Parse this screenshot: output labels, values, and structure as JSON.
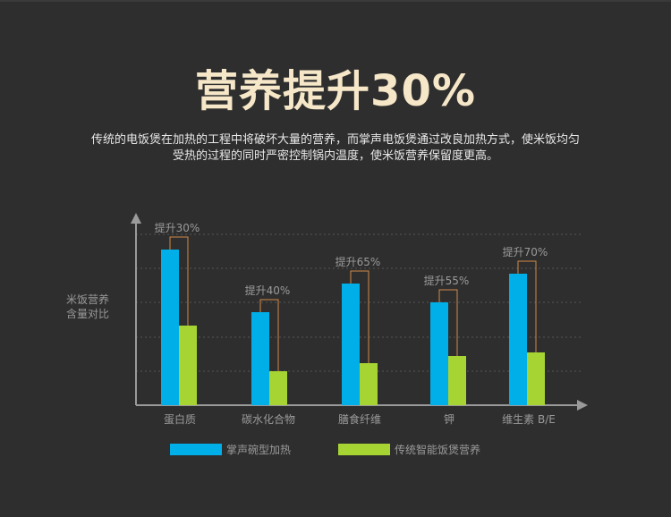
{
  "header": {
    "title": "营养提升30%",
    "description_lines": [
      "传统的电饭煲在加热的工程中将破坏大量的营养，而掌声电饭煲通过改良加热方式，使米饭均匀",
      "受热的过程的同时严密控制锅内温度，使米饭营养保留度更高。"
    ]
  },
  "chart_data": {
    "type": "bar",
    "ylabel_lines": [
      "米饭营养",
      "含量对比"
    ],
    "categories": [
      "蛋白质",
      "碳水化合物",
      "膳食纤维",
      "钾",
      "维生素 B/E"
    ],
    "series": [
      {
        "name": "掌声碗型加热",
        "color": "#00aee8",
        "values": [
          174,
          104,
          136,
          115,
          147
        ]
      },
      {
        "name": "传统智能饭煲营养",
        "color": "#a6d433",
        "values": [
          89,
          38,
          47,
          55,
          59
        ]
      }
    ],
    "annotations": [
      "提升30%",
      "提升40%",
      "提升65%",
      "提升55%",
      "提升70%"
    ],
    "ylim": [
      0,
      210
    ],
    "grid": true,
    "legend_position": "bottom",
    "colors": {
      "axis": "#9a9a9a",
      "grid": "#555555",
      "bracket": "#d08a48",
      "annotation_text": "#9a9a9a"
    }
  }
}
